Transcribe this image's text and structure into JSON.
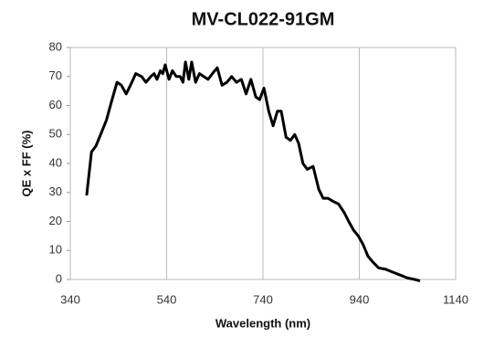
{
  "chart_data": {
    "type": "line",
    "title": "MV-CL022-91GM",
    "x_label": "Wavelength (nm)",
    "y_label": "QE x FF (%)",
    "series": [
      {
        "name": "QE",
        "color": "#000000",
        "x": [
          374,
          384,
          393,
          403,
          415,
          425,
          437,
          446,
          456,
          465,
          476,
          488,
          497,
          507,
          514,
          520,
          527,
          532,
          537,
          545,
          552,
          560,
          568,
          574,
          579,
          586,
          592,
          600,
          608,
          617,
          626,
          635,
          645,
          655,
          665,
          675,
          685,
          695,
          705,
          715,
          725,
          733,
          742,
          752,
          761,
          770,
          778,
          788,
          797,
          806,
          814,
          823,
          832,
          844,
          856,
          865,
          875,
          885,
          897,
          909,
          918,
          928,
          938,
          948,
          958,
          968,
          980,
          995,
          1010,
          1025,
          1040,
          1055,
          1066
        ],
        "values": [
          29,
          44,
          46,
          50,
          55,
          61,
          68,
          67,
          64,
          67,
          71,
          70,
          68,
          70,
          71,
          69,
          72,
          71,
          74,
          69,
          72,
          70,
          70,
          68,
          75,
          69,
          75,
          68,
          71,
          70,
          69,
          71,
          73,
          67,
          68,
          70,
          68,
          69,
          64,
          69,
          63,
          62,
          66,
          58,
          53,
          58,
          58,
          49,
          48,
          50,
          47,
          40,
          38,
          39,
          31,
          28,
          28,
          27,
          26,
          23,
          20,
          17,
          15,
          12,
          8,
          6,
          4,
          3.5,
          2.5,
          1.5,
          0.5,
          0,
          -0.5
        ]
      }
    ],
    "xlim": [
      340,
      1140
    ],
    "xticks": [
      340,
      540,
      740,
      940,
      1140
    ],
    "ylim": [
      0,
      80
    ],
    "yticks": [
      0,
      10,
      20,
      30,
      40,
      50,
      60,
      70,
      80
    ],
    "grid_x": true
  }
}
